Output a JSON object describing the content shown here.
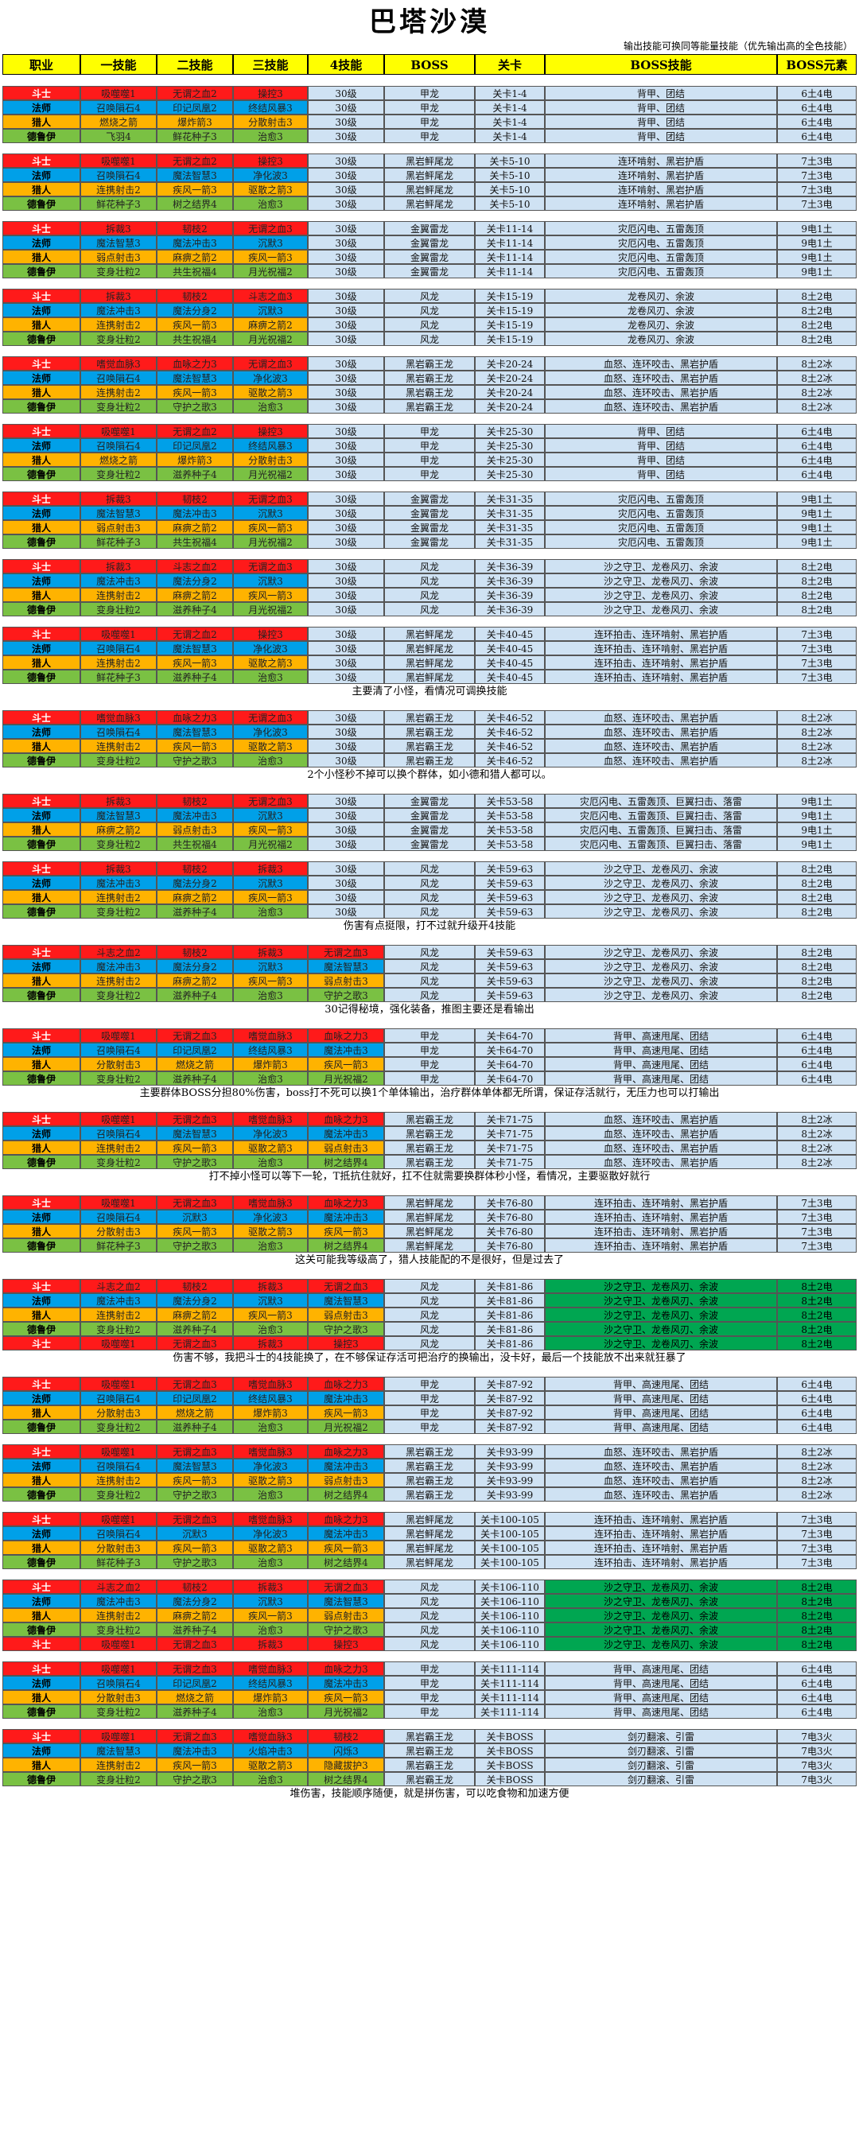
{
  "title": "巴塔沙漠",
  "subtitle": "输出技能可换同等能量技能（优先输出高的全色技能）",
  "headers": [
    "职业",
    "一技能",
    "二技能",
    "三技能",
    "4技能",
    "BOSS",
    "关卡",
    "BOSS技能",
    "BOSS元素"
  ],
  "colors": {
    "warrior": "#ff1a1a",
    "mage": "#00a0e8",
    "hunter": "#ffb300",
    "druid": "#7ac143",
    "cell": "#cfe2f3",
    "header": "#ffff00",
    "highlight": "#00a651"
  },
  "groups": [
    {
      "num": "30级",
      "boss": "甲龙",
      "lvl": "关卡1-4",
      "bsk": "背甲、团结",
      "elem": "6土4电",
      "rows": [
        {
          "cls": "斗士",
          "s1": "吸噬噬1",
          "s2": "无谓之血2",
          "s3": "操控3"
        },
        {
          "cls": "法师",
          "s1": "召唤隕石4",
          "s2": "印记凤凰2",
          "s3": "终结风暴3"
        },
        {
          "cls": "猎人",
          "s1": "燃烧之箭",
          "s2": "爆炸箭3",
          "s3": "分散射击3"
        },
        {
          "cls": "德鲁伊",
          "s1": "飞羽4",
          "s2": "鲜花种子3",
          "s3": "治愈3"
        }
      ]
    },
    {
      "num": "30级",
      "boss": "黑岩鲆尾龙",
      "lvl": "关卡5-10",
      "bsk": "连环啃射、黑岩护盾",
      "elem": "7土3电",
      "rows": [
        {
          "cls": "斗士",
          "s1": "吸噬噬1",
          "s2": "无谓之血2",
          "s3": "操控3"
        },
        {
          "cls": "法师",
          "s1": "召唤隕石4",
          "s2": "魔法智慧3",
          "s3": "净化波3"
        },
        {
          "cls": "猎人",
          "s1": "连携射击2",
          "s2": "疾风一箭3",
          "s3": "驱散之箭3"
        },
        {
          "cls": "德鲁伊",
          "s1": "鲜花种子3",
          "s2": "树之结界4",
          "s3": "治愈3"
        }
      ]
    },
    {
      "num": "30级",
      "boss": "金翼雷龙",
      "lvl": "关卡11-14",
      "bsk": "灾厄闪电、五雷轰顶",
      "elem": "9电1土",
      "rows": [
        {
          "cls": "斗士",
          "s1": "拆裁3",
          "s2": "韧枝2",
          "s3": "无谓之血3"
        },
        {
          "cls": "法师",
          "s1": "魔法智慧3",
          "s2": "魔法冲击3",
          "s3": "沉默3"
        },
        {
          "cls": "猎人",
          "s1": "弱点射击3",
          "s2": "麻痹之箭2",
          "s3": "疾风一箭3"
        },
        {
          "cls": "德鲁伊",
          "s1": "变身壮粒2",
          "s2": "共生祝福4",
          "s3": "月光祝福2"
        }
      ]
    },
    {
      "num": "30级",
      "boss": "风龙",
      "lvl": "关卡15-19",
      "bsk": "龙卷风刃、余波",
      "elem": "8土2电",
      "rows": [
        {
          "cls": "斗士",
          "s1": "拆裁3",
          "s2": "韧枝2",
          "s3": "斗志之血3"
        },
        {
          "cls": "法师",
          "s1": "魔法冲击3",
          "s2": "魔法分身2",
          "s3": "沉默3"
        },
        {
          "cls": "猎人",
          "s1": "连携射击2",
          "s2": "疾风一箭3",
          "s3": "麻痹之箭2"
        },
        {
          "cls": "德鲁伊",
          "s1": "变身壮粒2",
          "s2": "共生祝福4",
          "s3": "月光祝福2"
        }
      ]
    },
    {
      "num": "30级",
      "boss": "黑岩霸王龙",
      "lvl": "关卡20-24",
      "bsk": "血怒、连环咬击、黑岩护盾",
      "elem": "8土2冰",
      "rows": [
        {
          "cls": "斗士",
          "s1": "嗜觉血脉3",
          "s2": "血咏之力3",
          "s3": "无谓之血3"
        },
        {
          "cls": "法师",
          "s1": "召唤隕石4",
          "s2": "魔法智慧3",
          "s3": "净化波3"
        },
        {
          "cls": "猎人",
          "s1": "连携射击2",
          "s2": "疾风一箭3",
          "s3": "驱散之箭3"
        },
        {
          "cls": "德鲁伊",
          "s1": "变身壮粒2",
          "s2": "守护之歌3",
          "s3": "治愈3"
        }
      ]
    },
    {
      "num": "30级",
      "boss": "甲龙",
      "lvl": "关卡25-30",
      "bsk": "背甲、团结",
      "elem": "6土4电",
      "rows": [
        {
          "cls": "斗士",
          "s1": "吸噬噬1",
          "s2": "无谓之血2",
          "s3": "操控3"
        },
        {
          "cls": "法师",
          "s1": "召唤隕石4",
          "s2": "印记凤凰2",
          "s3": "终结风暴3"
        },
        {
          "cls": "猎人",
          "s1": "燃烧之箭",
          "s2": "爆炸箭3",
          "s3": "分散射击3"
        },
        {
          "cls": "德鲁伊",
          "s1": "变身壮粒2",
          "s2": "滋养种子4",
          "s3": "月光祝福2"
        }
      ]
    },
    {
      "num": "30级",
      "boss": "金翼雷龙",
      "lvl": "关卡31-35",
      "bsk": "灾厄闪电、五雷轰顶",
      "elem": "9电1土",
      "rows": [
        {
          "cls": "斗士",
          "s1": "拆裁3",
          "s2": "韧枝2",
          "s3": "无谓之血3"
        },
        {
          "cls": "法师",
          "s1": "魔法智慧3",
          "s2": "魔法冲击3",
          "s3": "沉默3"
        },
        {
          "cls": "猎人",
          "s1": "弱点射击3",
          "s2": "麻痹之箭2",
          "s3": "疾风一箭3"
        },
        {
          "cls": "德鲁伊",
          "s1": "鲜花种子3",
          "s2": "共生祝福4",
          "s3": "月光祝福2"
        }
      ]
    },
    {
      "num": "30级",
      "boss": "风龙",
      "lvl": "关卡36-39",
      "bsk": "沙之守卫、龙卷风刃、余波",
      "elem": "8土2电",
      "rows": [
        {
          "cls": "斗士",
          "s1": "拆裁3",
          "s2": "斗志之血2",
          "s3": "无谓之血3"
        },
        {
          "cls": "法师",
          "s1": "魔法冲击3",
          "s2": "魔法分身2",
          "s3": "沉默3"
        },
        {
          "cls": "猎人",
          "s1": "连携射击2",
          "s2": "麻痹之箭2",
          "s3": "疾风一箭3"
        },
        {
          "cls": "德鲁伊",
          "s1": "变身壮粒2",
          "s2": "滋养种子4",
          "s3": "月光祝福2"
        }
      ]
    },
    {
      "num": "30级",
      "boss": "黑岩鲆尾龙",
      "lvl": "关卡40-45",
      "bsk": "连环拍击、连环啃射、黑岩护盾",
      "elem": "7土3电",
      "rows": [
        {
          "cls": "斗士",
          "s1": "吸噬噬1",
          "s2": "无谓之血2",
          "s3": "操控3"
        },
        {
          "cls": "法师",
          "s1": "召唤隕石4",
          "s2": "魔法智慧3",
          "s3": "净化波3"
        },
        {
          "cls": "猎人",
          "s1": "连携射击2",
          "s2": "疾风一箭3",
          "s3": "驱散之箭3"
        },
        {
          "cls": "德鲁伊",
          "s1": "鲜花种子3",
          "s2": "滋养种子4",
          "s3": "治愈3"
        }
      ],
      "note": "主要清了小怪，看情况可调换技能"
    },
    {
      "num": "30级",
      "boss": "黑岩霸王龙",
      "lvl": "关卡46-52",
      "bsk": "血怒、连环咬击、黑岩护盾",
      "elem": "8土2冰",
      "rows": [
        {
          "cls": "斗士",
          "s1": "嗜觉血脉3",
          "s2": "血咏之力3",
          "s3": "无谓之血3"
        },
        {
          "cls": "法师",
          "s1": "召唤隕石4",
          "s2": "魔法智慧3",
          "s3": "净化波3"
        },
        {
          "cls": "猎人",
          "s1": "连携射击2",
          "s2": "疾风一箭3",
          "s3": "驱散之箭3"
        },
        {
          "cls": "德鲁伊",
          "s1": "变身壮粒2",
          "s2": "守护之歌3",
          "s3": "治愈3"
        }
      ],
      "note": "2个小怪秒不掉可以换个群体，如小德和猎人都可以。"
    },
    {
      "num": "30级",
      "boss": "金翼雷龙",
      "lvl": "关卡53-58",
      "bsk": "灾厄闪电、五雷轰顶、巨翼扫击、落雷",
      "elem": "9电1土",
      "rows": [
        {
          "cls": "斗士",
          "s1": "拆裁3",
          "s2": "韧枝2",
          "s3": "无谓之血3"
        },
        {
          "cls": "法师",
          "s1": "魔法智慧3",
          "s2": "魔法冲击3",
          "s3": "沉默3"
        },
        {
          "cls": "猎人",
          "s1": "麻痹之箭2",
          "s2": "弱点射击3",
          "s3": "疾风一箭3"
        },
        {
          "cls": "德鲁伊",
          "s1": "变身壮粒2",
          "s2": "共生祝福4",
          "s3": "月光祝福2"
        }
      ]
    },
    {
      "num": "30级",
      "boss": "风龙",
      "lvl": "关卡59-63",
      "bsk": "沙之守卫、龙卷风刃、余波",
      "elem": "8土2电",
      "rows": [
        {
          "cls": "斗士",
          "s1": "拆裁3",
          "s2": "韧枝2",
          "s3": "拆裁3"
        },
        {
          "cls": "法师",
          "s1": "魔法冲击3",
          "s2": "魔法分身2",
          "s3": "沉默3"
        },
        {
          "cls": "猎人",
          "s1": "连携射击2",
          "s2": "麻痹之箭2",
          "s3": "疾风一箭3"
        },
        {
          "cls": "德鲁伊",
          "s1": "变身壮粒2",
          "s2": "滋养种子4",
          "s3": "治愈3"
        }
      ],
      "note": "伤害有点挺限，打不过就升级开4技能"
    },
    {
      "num": "",
      "boss": "风龙",
      "lvl": "关卡59-63",
      "bsk": "沙之守卫、龙卷风刃、余波",
      "elem": "8土2电",
      "rows": [
        {
          "cls": "斗士",
          "s1": "斗志之血2",
          "s2": "韧枝2",
          "s3": "拆裁3",
          "s4": "无谓之血3"
        },
        {
          "cls": "法师",
          "s1": "魔法冲击3",
          "s2": "魔法分身2",
          "s3": "沉默3",
          "s4": "魔法智慧3"
        },
        {
          "cls": "猎人",
          "s1": "连携射击2",
          "s2": "麻痹之箭2",
          "s3": "疾风一箭3",
          "s4": "弱点射击3"
        },
        {
          "cls": "德鲁伊",
          "s1": "变身壮粒2",
          "s2": "滋养种子4",
          "s3": "治愈3",
          "s4": "守护之歌3"
        }
      ],
      "note": "30记得秘境，强化装备，推图主要还是看输出"
    },
    {
      "num": "30级",
      "boss": "甲龙",
      "lvl": "关卡64-70",
      "bsk": "背甲、高速甩尾、团结",
      "elem": "6土4电",
      "rows": [
        {
          "cls": "斗士",
          "s1": "吸噬噬1",
          "s2": "无谓之血3",
          "s3": "嗜觉血脉3",
          "s4": "血咏之力3"
        },
        {
          "cls": "法师",
          "s1": "召唤隕石4",
          "s2": "印记凤凰2",
          "s3": "终结风暴3",
          "s4": "魔法冲击3"
        },
        {
          "cls": "猎人",
          "s1": "分散射击3",
          "s2": "燃烧之箭",
          "s3": "爆炸箭3",
          "s4": "疾风一箭3"
        },
        {
          "cls": "德鲁伊",
          "s1": "变身壮粒2",
          "s2": "滋养种子4",
          "s3": "治愈3",
          "s4": "月光祝福2"
        }
      ],
      "note": "主要群体BOSS分担80%伤害，boss打不死可以换1个单体输出，治疗群体单体都无所谓，保证存活就行，无压力也可以打输出"
    },
    {
      "num": "",
      "boss": "黑岩霸王龙",
      "lvl": "关卡71-75",
      "bsk": "血怒、连环咬击、黑岩护盾",
      "elem": "8土2冰",
      "rows": [
        {
          "cls": "斗士",
          "s1": "吸噬噬1",
          "s2": "无谓之血3",
          "s3": "嗜觉血脉3",
          "s4": "血咏之力3"
        },
        {
          "cls": "法师",
          "s1": "召唤隕石4",
          "s2": "魔法智慧3",
          "s3": "净化波3",
          "s4": "魔法冲击3"
        },
        {
          "cls": "猎人",
          "s1": "连携射击2",
          "s2": "疾风一箭3",
          "s3": "驱散之箭3",
          "s4": "弱点射击3"
        },
        {
          "cls": "德鲁伊",
          "s1": "变身壮粒2",
          "s2": "守护之歌3",
          "s3": "治愈3",
          "s4": "树之结界4"
        }
      ],
      "note": "打不掉小怪可以等下一轮，T抵抗住就好，扛不住就需要换群体秒小怪，看情况，主要驱散好就行"
    },
    {
      "num": "",
      "boss": "黑岩鲆尾龙",
      "lvl": "关卡76-80",
      "bsk": "连环拍击、连环啃射、黑岩护盾",
      "elem": "7土3电",
      "rows": [
        {
          "cls": "斗士",
          "s1": "吸噬噬1",
          "s2": "无谓之血3",
          "s3": "嗜觉血脉3",
          "s4": "血咏之力3"
        },
        {
          "cls": "法师",
          "s1": "召唤隕石4",
          "s2": "沉默3",
          "s3": "净化波3",
          "s4": "魔法冲击3"
        },
        {
          "cls": "猎人",
          "s1": "分散射击3",
          "s2": "疾风一箭3",
          "s3": "驱散之箭3",
          "s4": "疾风一箭3"
        },
        {
          "cls": "德鲁伊",
          "s1": "鲜花种子3",
          "s2": "守护之歌3",
          "s3": "治愈3",
          "s4": "树之结界4"
        }
      ],
      "note": "这关可能我等级高了，猎人技能配的不是很好，但是过去了"
    },
    {
      "num": "",
      "boss": "风龙",
      "lvl": "关卡81-86",
      "bsk": "沙之守卫、龙卷风刃、余波",
      "elem": "8土2电",
      "hl": true,
      "rows": [
        {
          "cls": "斗士",
          "s1": "斗志之血2",
          "s2": "韧枝2",
          "s3": "拆裁3",
          "s4": "无谓之血3"
        },
        {
          "cls": "法师",
          "s1": "魔法冲击3",
          "s2": "魔法分身2",
          "s3": "沉默3",
          "s4": "魔法智慧3"
        },
        {
          "cls": "猎人",
          "s1": "连携射击2",
          "s2": "麻痹之箭2",
          "s3": "疾风一箭3",
          "s4": "弱点射击3"
        },
        {
          "cls": "德鲁伊",
          "s1": "变身壮粒2",
          "s2": "滋养种子4",
          "s3": "治愈3",
          "s4": "守护之歌3"
        },
        {
          "cls": "斗士",
          "s1": "吸噬噬1",
          "s2": "无谓之血3",
          "s3": "拆裁3",
          "s4": "操控3"
        }
      ],
      "note": "伤害不够，我把斗士的4技能换了，在不够保证存活可把治疗的换输出，没卡好，最后一个技能放不出来就狂暴了"
    },
    {
      "num": "",
      "boss": "甲龙",
      "lvl": "关卡87-92",
      "bsk": "背甲、高速甩尾、团结",
      "elem": "6土4电",
      "rows": [
        {
          "cls": "斗士",
          "s1": "吸噬噬1",
          "s2": "无谓之血3",
          "s3": "嗜觉血脉3",
          "s4": "血咏之力3"
        },
        {
          "cls": "法师",
          "s1": "召唤隕石4",
          "s2": "印记凤凰2",
          "s3": "终结风暴3",
          "s4": "魔法冲击3"
        },
        {
          "cls": "猎人",
          "s1": "分散射击3",
          "s2": "燃烧之箭",
          "s3": "爆炸箭3",
          "s4": "疾风一箭3"
        },
        {
          "cls": "德鲁伊",
          "s1": "变身壮粒2",
          "s2": "滋养种子4",
          "s3": "治愈3",
          "s4": "月光祝福2"
        }
      ]
    },
    {
      "num": "",
      "boss": "黑岩霸王龙",
      "lvl": "关卡93-99",
      "bsk": "血怒、连环咬击、黑岩护盾",
      "elem": "8土2冰",
      "rows": [
        {
          "cls": "斗士",
          "s1": "吸噬噬1",
          "s2": "无谓之血3",
          "s3": "嗜觉血脉3",
          "s4": "血咏之力3"
        },
        {
          "cls": "法师",
          "s1": "召唤隕石4",
          "s2": "魔法智慧3",
          "s3": "净化波3",
          "s4": "魔法冲击3"
        },
        {
          "cls": "猎人",
          "s1": "连携射击2",
          "s2": "疾风一箭3",
          "s3": "驱散之箭3",
          "s4": "弱点射击3"
        },
        {
          "cls": "德鲁伊",
          "s1": "变身壮粒2",
          "s2": "守护之歌3",
          "s3": "治愈3",
          "s4": "树之结界4"
        }
      ]
    },
    {
      "num": "",
      "boss": "黑岩鲆尾龙",
      "lvl": "关卡100-105",
      "bsk": "连环拍击、连环啃射、黑岩护盾",
      "elem": "7土3电",
      "rows": [
        {
          "cls": "斗士",
          "s1": "吸噬噬1",
          "s2": "无谓之血3",
          "s3": "嗜觉血脉3",
          "s4": "血咏之力3"
        },
        {
          "cls": "法师",
          "s1": "召唤隕石4",
          "s2": "沉默3",
          "s3": "净化波3",
          "s4": "魔法冲击3"
        },
        {
          "cls": "猎人",
          "s1": "分散射击3",
          "s2": "疾风一箭3",
          "s3": "驱散之箭3",
          "s4": "疾风一箭3"
        },
        {
          "cls": "德鲁伊",
          "s1": "鲜花种子3",
          "s2": "守护之歌3",
          "s3": "治愈3",
          "s4": "树之结界4"
        }
      ]
    },
    {
      "num": "",
      "boss": "风龙",
      "lvl": "关卡106-110",
      "bsk": "沙之守卫、龙卷风刃、余波",
      "elem": "8土2电",
      "hl": true,
      "rows": [
        {
          "cls": "斗士",
          "s1": "斗志之血2",
          "s2": "韧枝2",
          "s3": "拆裁3",
          "s4": "无谓之血3"
        },
        {
          "cls": "法师",
          "s1": "魔法冲击3",
          "s2": "魔法分身2",
          "s3": "沉默3",
          "s4": "魔法智慧3"
        },
        {
          "cls": "猎人",
          "s1": "连携射击2",
          "s2": "麻痹之箭2",
          "s3": "疾风一箭3",
          "s4": "弱点射击3"
        },
        {
          "cls": "德鲁伊",
          "s1": "变身壮粒2",
          "s2": "滋养种子4",
          "s3": "治愈3",
          "s4": "守护之歌3"
        },
        {
          "cls": "斗士",
          "s1": "吸噬噬1",
          "s2": "无谓之血3",
          "s3": "拆裁3",
          "s4": "操控3"
        }
      ]
    },
    {
      "num": "",
      "boss": "甲龙",
      "lvl": "关卡111-114",
      "bsk": "背甲、高速甩尾、团结",
      "elem": "6土4电",
      "rows": [
        {
          "cls": "斗士",
          "s1": "吸噬噬1",
          "s2": "无谓之血3",
          "s3": "嗜觉血脉3",
          "s4": "血咏之力3"
        },
        {
          "cls": "法师",
          "s1": "召唤隕石4",
          "s2": "印记凤凰2",
          "s3": "终结风暴3",
          "s4": "魔法冲击3"
        },
        {
          "cls": "猎人",
          "s1": "分散射击3",
          "s2": "燃烧之箭",
          "s3": "爆炸箭3",
          "s4": "疾风一箭3"
        },
        {
          "cls": "德鲁伊",
          "s1": "变身壮粒2",
          "s2": "滋养种子4",
          "s3": "治愈3",
          "s4": "月光祝福2"
        }
      ]
    },
    {
      "num": "",
      "boss": "黑岩霸王龙",
      "lvl": "关卡BOSS",
      "bsk": "剑刃翻滚、引雷",
      "elem": "7电3火",
      "rows": [
        {
          "cls": "斗士",
          "s1": "吸噬噬1",
          "s2": "无谓之血3",
          "s3": "嗜觉血脉3",
          "s4": "韧枝2"
        },
        {
          "cls": "法师",
          "s1": "魔法智慧3",
          "s2": "魔法冲击3",
          "s3": "火焰冲击3",
          "s4": "闪烁3"
        },
        {
          "cls": "猎人",
          "s1": "连携射击2",
          "s2": "疾风一箭3",
          "s3": "驱散之箭3",
          "s4": "隐藏拔护3"
        },
        {
          "cls": "德鲁伊",
          "s1": "变身壮粒2",
          "s2": "守护之歌3",
          "s3": "治愈3",
          "s4": "树之结界4"
        }
      ],
      "note": "堆伤害，技能顺序随便，就是拼伤害，可以吃食物和加速方便"
    }
  ]
}
